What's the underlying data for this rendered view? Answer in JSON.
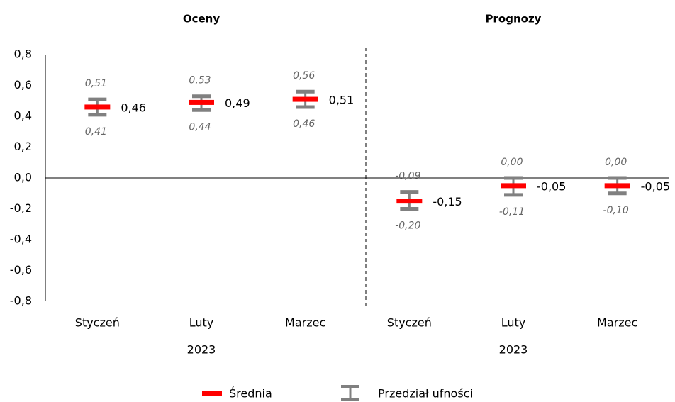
{
  "chart_data": {
    "type": "interval",
    "groups": [
      {
        "title": "Oceny",
        "sublabel": "2023"
      },
      {
        "title": "Prognozy",
        "sublabel": "2023"
      }
    ],
    "categories": [
      "Styczeń",
      "Luty",
      "Marzec",
      "Styczeń",
      "Luty",
      "Marzec"
    ],
    "series": [
      {
        "name": "Średnia",
        "color": "#ff0000",
        "values": [
          0.46,
          0.49,
          0.51,
          -0.15,
          -0.05,
          -0.05
        ],
        "value_labels": [
          "0,46",
          "0,49",
          "0,51",
          "-0,15",
          "-0,05",
          "-0,05"
        ]
      },
      {
        "name": "Przedział ufności",
        "color": "#808080",
        "upper": [
          0.51,
          0.53,
          0.56,
          -0.09,
          0.0,
          0.0
        ],
        "upper_labels": [
          "0,51",
          "0,53",
          "0,56",
          "-0,09",
          "0,00",
          "0,00"
        ],
        "lower": [
          0.41,
          0.44,
          0.46,
          -0.2,
          -0.11,
          -0.1
        ],
        "lower_labels": [
          "0,41",
          "0,44",
          "0,46",
          "-0,20",
          "-0,11",
          "-0,10"
        ]
      }
    ],
    "ylim": [
      -0.8,
      0.8
    ],
    "yticks": [
      {
        "value": -0.8,
        "label": "-0,8"
      },
      {
        "value": -0.6,
        "label": "-0,6"
      },
      {
        "value": -0.4,
        "label": "-0,4"
      },
      {
        "value": -0.2,
        "label": "-0,2"
      },
      {
        "value": 0,
        "label": "0,0"
      },
      {
        "value": 0.2,
        "label": "0,2"
      },
      {
        "value": 0.4,
        "label": "0,4"
      },
      {
        "value": 0.6,
        "label": "0,6"
      },
      {
        "value": 0.8,
        "label": "0,8"
      }
    ]
  }
}
